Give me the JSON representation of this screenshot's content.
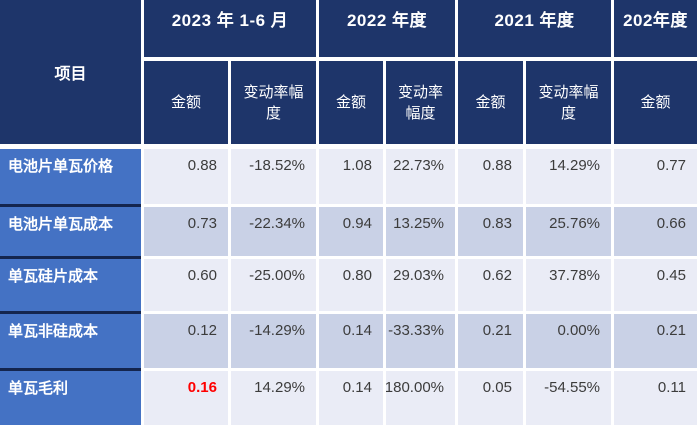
{
  "table": {
    "corner_header": "项目",
    "col_groups": [
      {
        "label": "2023 年 1-6 月",
        "sub": [
          "金额",
          "变动率幅度"
        ]
      },
      {
        "label": "2022 年度",
        "sub": [
          "金额",
          "变动率幅度"
        ]
      },
      {
        "label": "2021 年度",
        "sub": [
          "金额",
          "变动率幅度"
        ]
      },
      {
        "label": "202年度",
        "sub": [
          "金额"
        ]
      }
    ],
    "rows": [
      {
        "label": "电池片单瓦价格",
        "values": [
          "0.88",
          "-18.52%",
          "1.08",
          "22.73%",
          "0.88",
          "14.29%",
          "0.77"
        ]
      },
      {
        "label": "电池片单瓦成本",
        "values": [
          "0.73",
          "-22.34%",
          "0.94",
          "13.25%",
          "0.83",
          "25.76%",
          "0.66"
        ]
      },
      {
        "label": "单瓦硅片成本",
        "values": [
          "0.60",
          "-25.00%",
          "0.80",
          "29.03%",
          "0.62",
          "37.78%",
          "0.45"
        ]
      },
      {
        "label": "单瓦非硅成本",
        "values": [
          "0.12",
          "-14.29%",
          "0.14",
          "-33.33%",
          "0.21",
          "0.00%",
          "0.21"
        ]
      },
      {
        "label": "单瓦毛利",
        "values": [
          "0.16",
          "14.29%",
          "0.14",
          "180.00%",
          "0.05",
          "-54.55%",
          "0.11"
        ]
      }
    ],
    "highlighted_cell": {
      "row": "单瓦毛利",
      "column": "2023 年 1-6 月 金额",
      "value": "0.16"
    },
    "colors": {
      "header_bg": "#1E356A",
      "row_label_bg": "#4472C4",
      "row_light_bg": "#EAECF6",
      "row_dark_bg": "#C9D1E6",
      "label_divider": "#14254E",
      "highlight_value": "#FF0000",
      "value_text": "#3C3C3C"
    }
  }
}
